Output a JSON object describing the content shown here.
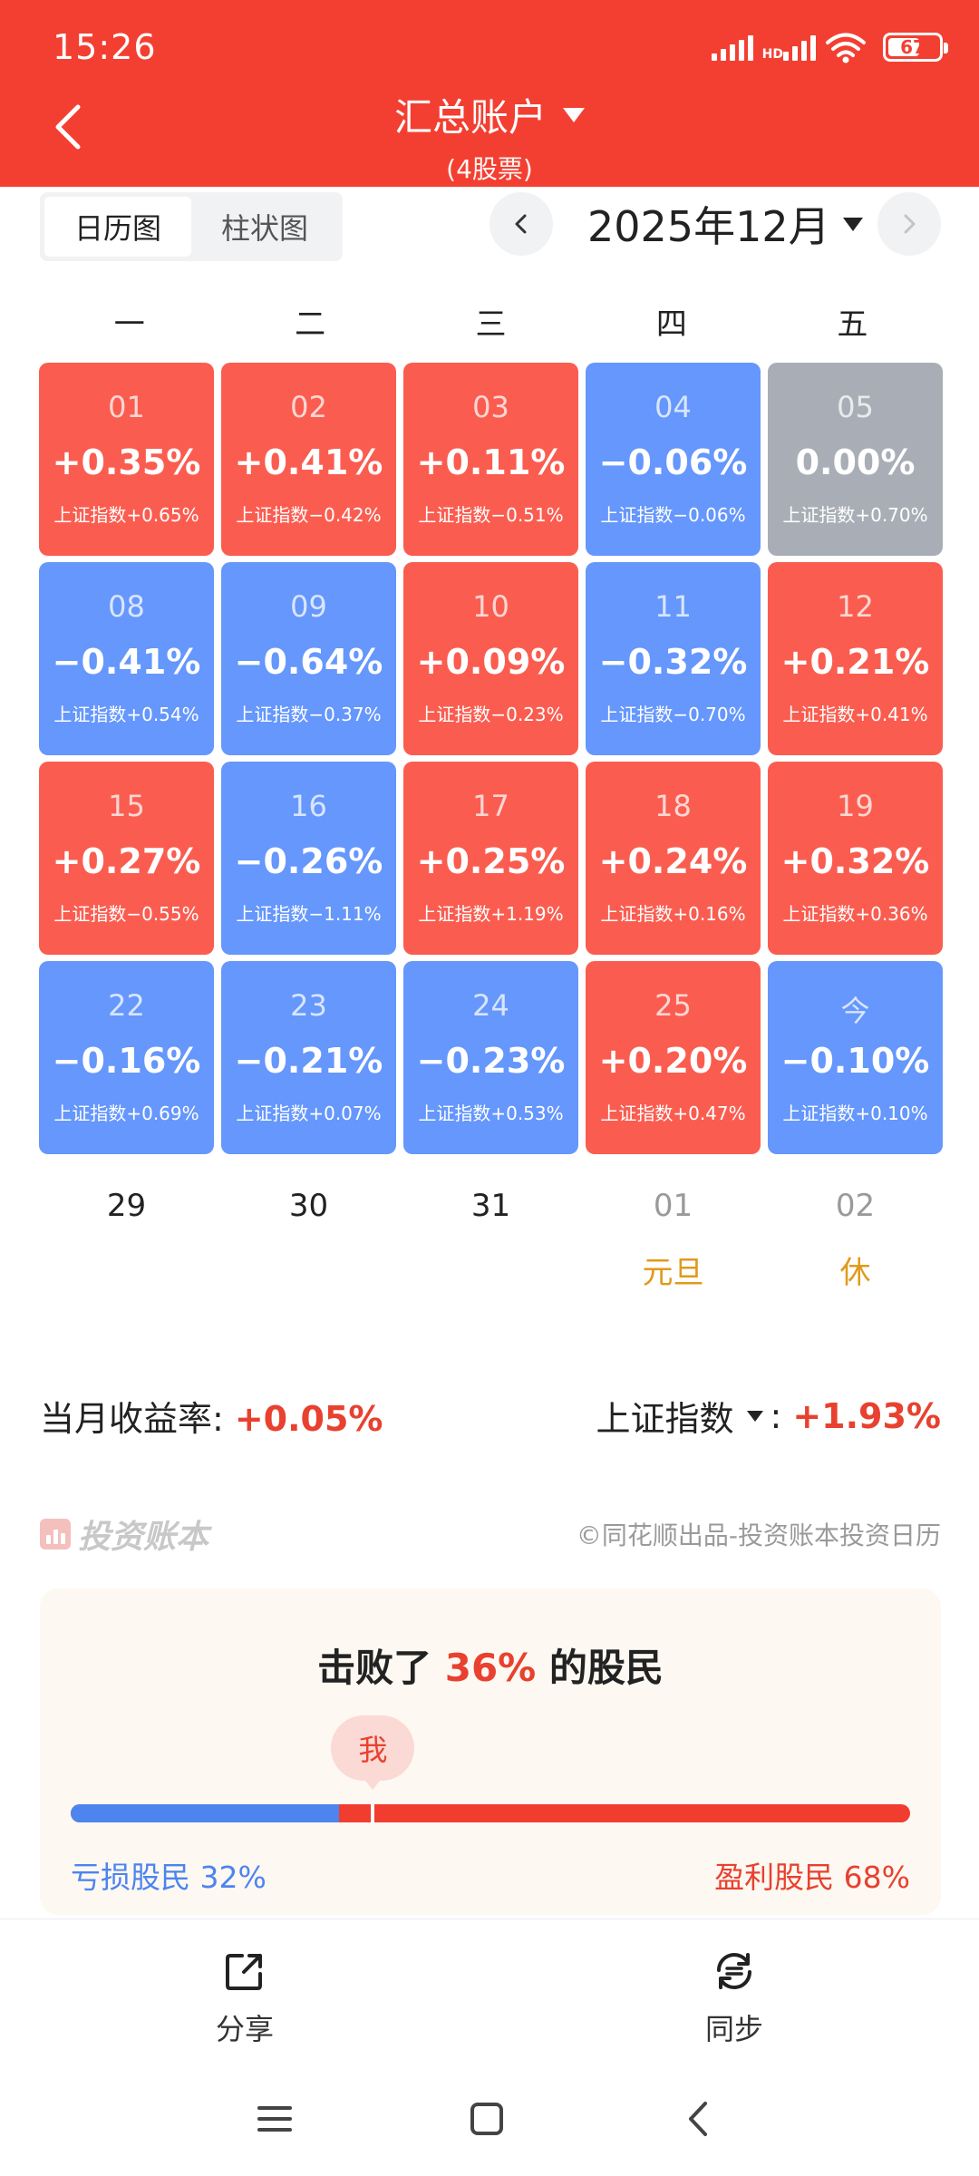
{
  "status_bar": {
    "time": "15:26",
    "network": "HD",
    "battery": "67",
    "battery_level": 0.67
  },
  "header": {
    "title": "汇总账户",
    "subtitle": "(4股票)"
  },
  "view_toggle": {
    "calendar": "日历图",
    "bar": "柱状图",
    "selected": "calendar"
  },
  "month_nav": {
    "month": "2025年12月"
  },
  "weekdays": [
    "一",
    "二",
    "三",
    "四",
    "五"
  ],
  "calendar": {
    "weeks": [
      [
        {
          "day": "01",
          "pct": "+0.35%",
          "index": "上证指数+0.65%",
          "trend": "up"
        },
        {
          "day": "02",
          "pct": "+0.41%",
          "index": "上证指数−0.42%",
          "trend": "up"
        },
        {
          "day": "03",
          "pct": "+0.11%",
          "index": "上证指数−0.51%",
          "trend": "up"
        },
        {
          "day": "04",
          "pct": "−0.06%",
          "index": "上证指数−0.06%",
          "trend": "down"
        },
        {
          "day": "05",
          "pct": "0.00%",
          "index": "上证指数+0.70%",
          "trend": "flat"
        }
      ],
      [
        {
          "day": "08",
          "pct": "−0.41%",
          "index": "上证指数+0.54%",
          "trend": "down"
        },
        {
          "day": "09",
          "pct": "−0.64%",
          "index": "上证指数−0.37%",
          "trend": "down"
        },
        {
          "day": "10",
          "pct": "+0.09%",
          "index": "上证指数−0.23%",
          "trend": "up"
        },
        {
          "day": "11",
          "pct": "−0.32%",
          "index": "上证指数−0.70%",
          "trend": "down"
        },
        {
          "day": "12",
          "pct": "+0.21%",
          "index": "上证指数+0.41%",
          "trend": "up"
        }
      ],
      [
        {
          "day": "15",
          "pct": "+0.27%",
          "index": "上证指数−0.55%",
          "trend": "up"
        },
        {
          "day": "16",
          "pct": "−0.26%",
          "index": "上证指数−1.11%",
          "trend": "down"
        },
        {
          "day": "17",
          "pct": "+0.25%",
          "index": "上证指数+1.19%",
          "trend": "up"
        },
        {
          "day": "18",
          "pct": "+0.24%",
          "index": "上证指数+0.16%",
          "trend": "up"
        },
        {
          "day": "19",
          "pct": "+0.32%",
          "index": "上证指数+0.36%",
          "trend": "up"
        }
      ],
      [
        {
          "day": "22",
          "pct": "−0.16%",
          "index": "上证指数+0.69%",
          "trend": "down"
        },
        {
          "day": "23",
          "pct": "−0.21%",
          "index": "上证指数+0.07%",
          "trend": "down"
        },
        {
          "day": "24",
          "pct": "−0.23%",
          "index": "上证指数+0.53%",
          "trend": "down"
        },
        {
          "day": "25",
          "pct": "+0.20%",
          "index": "上证指数+0.47%",
          "trend": "up"
        },
        {
          "day": "今",
          "pct": "−0.10%",
          "index": "上证指数+0.10%",
          "trend": "down"
        }
      ]
    ],
    "upcoming": [
      {
        "day": "29",
        "note": "",
        "dim": false
      },
      {
        "day": "30",
        "note": "",
        "dim": false
      },
      {
        "day": "31",
        "note": "",
        "dim": false
      },
      {
        "day": "01",
        "note": "元旦",
        "dim": true
      },
      {
        "day": "02",
        "note": "休",
        "dim": true
      }
    ],
    "colors": {
      "up": "#fa5d50",
      "down": "#6597fc",
      "flat": "#a9aeb6"
    }
  },
  "summary": {
    "monthly_label": "当月收益率:",
    "monthly_value": "+0.05%",
    "index_label": "上证指数",
    "index_sep": ":",
    "index_value": "+1.93%"
  },
  "brand": {
    "name": "投资账本",
    "credit": "©同花顺出品-投资账本投资日历"
  },
  "beat": {
    "prefix": "击败了",
    "value": "36%",
    "suffix": "的股民",
    "me": "我",
    "position": 0.36,
    "loss_label": "亏损股民 32%",
    "loss_share": 0.32,
    "gain_label": "盈利股民 68%"
  },
  "bottom_bar": {
    "share": "分享",
    "sync": "同步"
  }
}
